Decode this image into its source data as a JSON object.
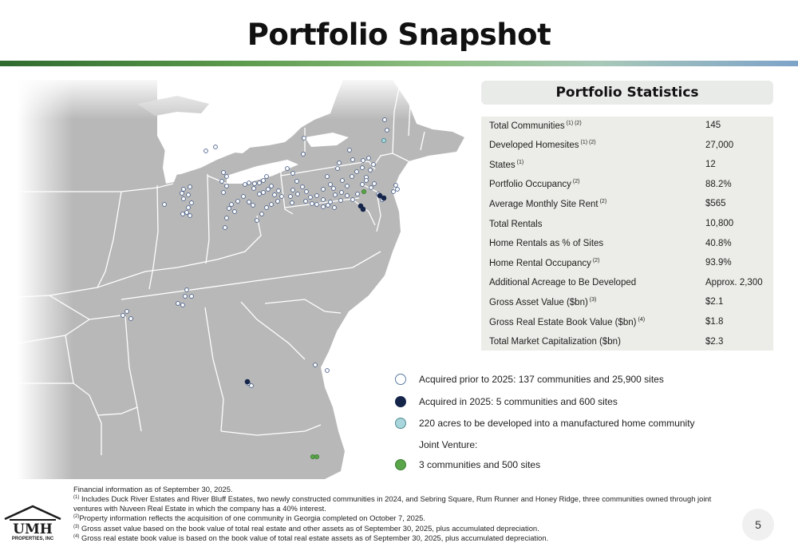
{
  "title": "Portfolio Snapshot",
  "stats": {
    "header": "Portfolio Statistics",
    "rows": [
      {
        "label": "Total Communities",
        "note": "(1) (2)",
        "value": "145"
      },
      {
        "label": "Developed Homesites",
        "note": "(1) (2)",
        "value": "27,000"
      },
      {
        "label": "States",
        "note": "(1)",
        "value": "12"
      },
      {
        "label": "Portfolio Occupancy",
        "note": "(2)",
        "value": "88.2%"
      },
      {
        "label": "Average Monthly Site Rent",
        "note": "(2)",
        "value": "$565"
      },
      {
        "label": "Total Rentals",
        "note": "",
        "value": "10,800"
      },
      {
        "label": "Home Rentals as % of Sites",
        "note": "",
        "value": "40.8%"
      },
      {
        "label": "Home Rental Occupancy",
        "note": "(2)",
        "value": "93.9%"
      },
      {
        "label": "Additional Acreage to Be Developed",
        "note": "",
        "value": "Approx. 2,300"
      },
      {
        "label": "Gross Asset Value ($bn)",
        "note": "(3)",
        "value": "$2.1"
      },
      {
        "label": "Gross Real Estate Book Value ($bn)",
        "note": "(4)",
        "value": "$1.8"
      },
      {
        "label": "Total Market Capitalization ($bn)",
        "note": "",
        "value": "$2.3"
      }
    ]
  },
  "legend": {
    "items": [
      {
        "text": "Acquired prior to 2025: 137 communities and 25,900 sites",
        "color": "#ffffff",
        "border": "#5a7aa0",
        "icon": "white-circle"
      },
      {
        "text": "Acquired in 2025: 5 communities and 600 sites",
        "color": "#15254a",
        "border": "#15254a",
        "icon": "navy-circle"
      },
      {
        "text": "220 acres to be developed into a manufactured home community",
        "color": "#a9d6dc",
        "border": "#4f8a92",
        "icon": "light-blue-circle"
      },
      {
        "text": "Joint Venture:",
        "color": "",
        "border": "",
        "icon": ""
      },
      {
        "text": "3 communities and 500 sites",
        "color": "#5aa54a",
        "border": "#3c7d33",
        "icon": "green-circle"
      }
    ]
  },
  "footnotes": {
    "lead": "Financial information as of September 30, 2025.",
    "n1_mark": "(1)",
    "n1": "Includes Duck River Estates and River Bluff Estates, two newly constructed communities in 2024, and Sebring Square, Rum Runner and Honey Ridge, three communities owned through joint ventures with Nuveen Real Estate in which the company has a 40% interest.",
    "n2_mark": "(2)",
    "n2": "Property information reflects the acquisition of one community in Georgia completed on October 7, 2025.",
    "n3_mark": "(3)",
    "n3": "Gross asset value based on the book value of total real estate and other assets as of September 30, 2025, plus accumulated depreciation.",
    "n4_mark": "(4)",
    "n4": "Gross real estate book value is based on the book value of total real estate assets as of September 30, 2025, plus accumulated depreciation."
  },
  "logo": {
    "main": "UMH",
    "sub": "PROPERTIES, INC"
  },
  "page_number": "5",
  "map": {
    "land_color": "#b5b5b5",
    "border_color": "#ffffff",
    "prior_color": "#ffffff",
    "new_color": "#15254a",
    "develop_color": "#a9d6dc",
    "jv_color": "#5aa54a"
  }
}
